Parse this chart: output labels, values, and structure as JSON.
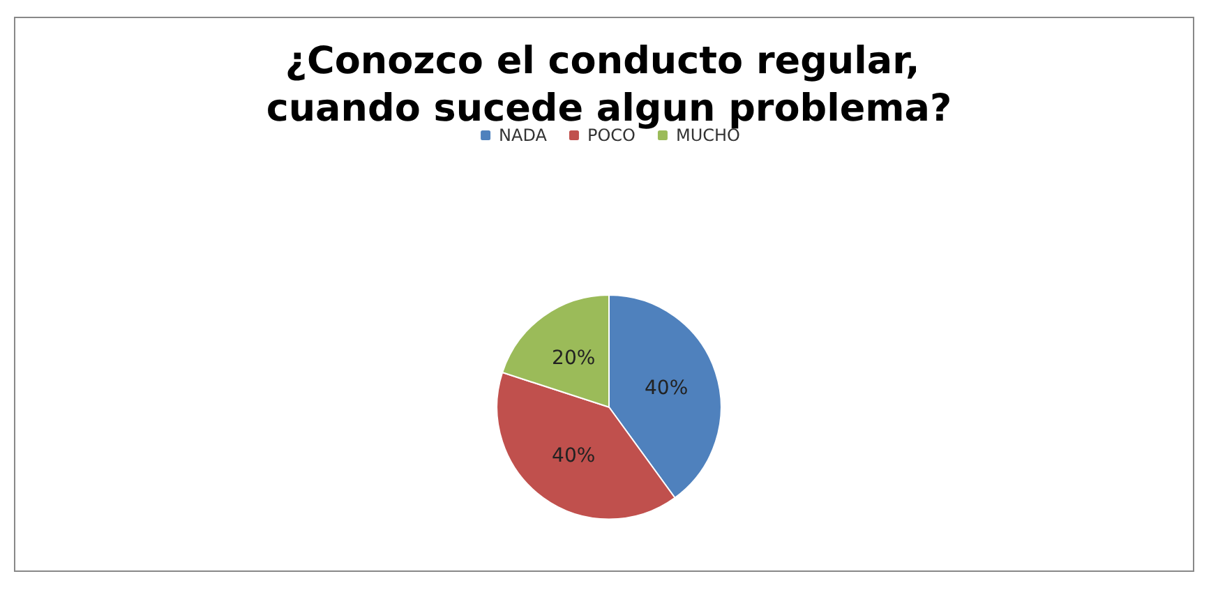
{
  "chart_data": {
    "type": "pie",
    "title": "¿Conozco el conducto regular, cuando sucede algun problema?",
    "categories": [
      "NADA",
      "POCO",
      "MUCHO"
    ],
    "values": [
      40,
      40,
      20
    ],
    "value_labels": [
      "40%",
      "40%",
      "20%"
    ],
    "colors": [
      "#4f81bd",
      "#c0504d",
      "#9bbb59"
    ],
    "legend": "top"
  }
}
